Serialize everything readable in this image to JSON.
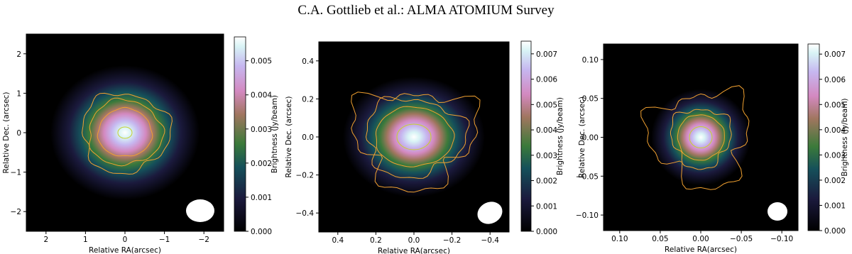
{
  "header": {
    "title": "C.A. Gottlieb et al.: ALMA ATOMIUM Survey"
  },
  "chart_data": [
    {
      "type": "image",
      "xlabel": "Relative RA(arcsec)",
      "ylabel": "Relative Dec. (arcsec)",
      "xlim": [
        2.5,
        -2.5
      ],
      "ylim": [
        -2.5,
        2.5
      ],
      "xticks": [
        2,
        1,
        0,
        {
          "value": -1,
          "label": "−1"
        },
        {
          "value": -2,
          "label": "−2"
        }
      ],
      "yticks": [
        {
          "value": -2,
          "label": "−2"
        },
        {
          "value": -1,
          "label": "−1"
        },
        0,
        1,
        2
      ],
      "colorbar": {
        "label": "Brightness (Jy/beam)",
        "clim": [
          0,
          0.0057
        ],
        "ticks": [
          {
            "value": 0,
            "label": "0.000"
          },
          {
            "value": 0.001,
            "label": "0.001"
          },
          {
            "value": 0.002,
            "label": "0.002"
          },
          {
            "value": 0.003,
            "label": "0.003"
          },
          {
            "value": 0.004,
            "label": "0.004"
          },
          {
            "value": 0.005,
            "label": "0.005"
          }
        ]
      }
    },
    {
      "type": "image",
      "xlabel": "Relative RA(arcsec)",
      "ylabel": "Relative Dec. (arcsec)",
      "xlim": [
        0.5,
        -0.5
      ],
      "ylim": [
        -0.5,
        0.5
      ],
      "xticks": [
        0.4,
        0.2,
        {
          "value": 0,
          "label": "0.0"
        },
        {
          "value": -0.2,
          "label": "−0.2"
        },
        {
          "value": -0.4,
          "label": "−0.4"
        }
      ],
      "yticks": [
        {
          "value": -0.4,
          "label": "−0.4"
        },
        {
          "value": -0.2,
          "label": "−0.2"
        },
        {
          "value": 0,
          "label": "0.0"
        },
        0.2,
        0.4
      ],
      "colorbar": {
        "label": "Brightness (Jy/beam)",
        "clim": [
          0,
          0.0075
        ],
        "ticks": [
          {
            "value": 0,
            "label": "0.000"
          },
          {
            "value": 0.001,
            "label": "0.001"
          },
          {
            "value": 0.002,
            "label": "0.002"
          },
          {
            "value": 0.003,
            "label": "0.003"
          },
          {
            "value": 0.004,
            "label": "0.004"
          },
          {
            "value": 0.005,
            "label": "0.005"
          },
          {
            "value": 0.006,
            "label": "0.006"
          },
          {
            "value": 0.007,
            "label": "0.007"
          }
        ]
      }
    },
    {
      "type": "image",
      "xlabel": "Relative RA(arcsec)",
      "ylabel": "Relative Dec. (arcsec)",
      "xlim": [
        0.12,
        -0.12
      ],
      "ylim": [
        -0.12,
        0.12
      ],
      "xticks": [
        {
          "value": 0.1,
          "label": "0.10"
        },
        0.05,
        {
          "value": 0,
          "label": "0.00"
        },
        {
          "value": -0.05,
          "label": "−0.05"
        },
        {
          "value": -0.1,
          "label": "−0.10"
        }
      ],
      "yticks": [
        {
          "value": -0.1,
          "label": "−0.10"
        },
        {
          "value": -0.05,
          "label": "−0.05"
        },
        {
          "value": 0,
          "label": "0.00"
        },
        0.05,
        {
          "value": 0.1,
          "label": "0.10"
        }
      ],
      "colorbar": {
        "label": "Brightness (Jy/beam)",
        "clim": [
          0,
          0.0074
        ],
        "ticks": [
          {
            "value": 0,
            "label": "0.000"
          },
          {
            "value": 0.001,
            "label": "0.001"
          },
          {
            "value": 0.002,
            "label": "0.002"
          },
          {
            "value": 0.003,
            "label": "0.003"
          },
          {
            "value": 0.004,
            "label": "0.004"
          },
          {
            "value": 0.005,
            "label": "0.005"
          },
          {
            "value": 0.006,
            "label": "0.006"
          },
          {
            "value": 0.007,
            "label": "0.007"
          }
        ]
      }
    }
  ]
}
